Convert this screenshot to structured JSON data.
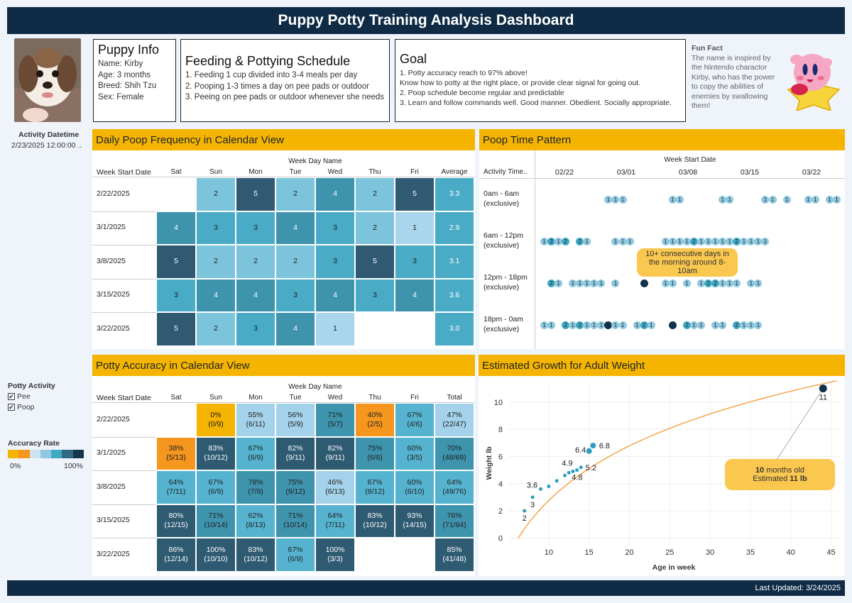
{
  "header": {
    "title": "Puppy Potty Training Analysis Dashboard"
  },
  "footer": {
    "last_updated": "Last Updated: 3/24/2025"
  },
  "puppy_info": {
    "title": "Puppy Info",
    "lines": [
      "Name: Kirby",
      "Age: 3 months",
      "Breed: Shih Tzu",
      "Sex: Female"
    ]
  },
  "schedule": {
    "title": "Feeding & Pottying Schedule",
    "lines": [
      "1. Feeding 1 cup divided into 3-4 meals per day",
      "2. Pooping 1-3 times a day on pee pads or outdoor",
      "3. Peeing on pee pads or outdoor whenever she needs"
    ]
  },
  "goal": {
    "title": "Goal",
    "lines": [
      "1. Potty accuracy reach to 97% above!",
      "Know how to potty at the right place, or provide clear signal for going out.",
      "2. Poop schedule become regular and predictable",
      "3. Learn and follow commands well. Good manner. Obedient. Socially appropriate."
    ]
  },
  "fun_fact": {
    "title": "Fun Fact",
    "text": "The name is inspired by the Nintendo charactor Kirby, who has the power to copy the abilities of enemies by swallowing them!"
  },
  "filters": {
    "activity_datetime_label": "Activity Datetime",
    "activity_datetime_value": "2/23/2025 12:00:00 ..",
    "potty_activity_label": "Potty Activity",
    "potty_options": [
      "Pee",
      "Poop"
    ],
    "accuracy_rate_label": "Accuracy Rate",
    "accuracy_min": "0%",
    "accuracy_max": "100%",
    "accuracy_colors": [
      "#f5b400",
      "#f5961f",
      "#cde3f0",
      "#8fc9e0",
      "#3fa9c4",
      "#2e6a86",
      "#15354d"
    ]
  },
  "poop_calendar": {
    "title": "Daily Poop Frequency in Calendar View",
    "group_header": "Week Day Name",
    "row_header": "Week Start Date",
    "columns": [
      "Sat",
      "Sun",
      "Mon",
      "Tue",
      "Wed",
      "Thu",
      "Fri",
      "Average"
    ],
    "rows": [
      {
        "week": "2/22/2025",
        "cells": [
          "",
          "2",
          "5",
          "2",
          "4",
          "2",
          "5",
          "3.3"
        ]
      },
      {
        "week": "3/1/2025",
        "cells": [
          "4",
          "3",
          "3",
          "4",
          "3",
          "2",
          "1",
          "2.9"
        ]
      },
      {
        "week": "3/8/2025",
        "cells": [
          "5",
          "2",
          "2",
          "2",
          "3",
          "5",
          "3",
          "3.1"
        ]
      },
      {
        "week": "3/15/2025",
        "cells": [
          "3",
          "4",
          "4",
          "3",
          "4",
          "3",
          "4",
          "3.6"
        ]
      },
      {
        "week": "3/22/2025",
        "cells": [
          "5",
          "2",
          "3",
          "4",
          "1",
          "",
          "",
          "3.0"
        ]
      }
    ]
  },
  "poop_time": {
    "title": "Poop Time Pattern",
    "x_header": "Week Start Date",
    "row_header": "Activity Time..",
    "x_ticks": [
      "02/22",
      "03/01",
      "03/08",
      "03/15",
      "03/22"
    ],
    "rows": [
      {
        "label1": "0am - 6am",
        "label2": "(exclusive)",
        "values": [
          0,
          0,
          0,
          0,
          0,
          0,
          0,
          0,
          0,
          1,
          1,
          1,
          0,
          0,
          0,
          0,
          0,
          0,
          1,
          1,
          0,
          0,
          0,
          0,
          0,
          1,
          1,
          0,
          0,
          0,
          0,
          1,
          1,
          0,
          1,
          0,
          0,
          1,
          1,
          0,
          1,
          1
        ]
      },
      {
        "label1": "6am - 12pm",
        "label2": "(exclusive)",
        "values": [
          1,
          2,
          1,
          2,
          0,
          2,
          1,
          0,
          0,
          0,
          1,
          1,
          1,
          0,
          0,
          0,
          0,
          1,
          1,
          1,
          1,
          2,
          1,
          1,
          1,
          1,
          1,
          2,
          1,
          1,
          1,
          1,
          0,
          0,
          0,
          0,
          0,
          0,
          0,
          0,
          0,
          0
        ]
      },
      {
        "label1": "12pm - 18pm",
        "label2": "(exclusive)",
        "values": [
          0,
          2,
          1,
          0,
          1,
          1,
          1,
          1,
          1,
          0,
          1,
          0,
          0,
          0,
          3,
          0,
          0,
          1,
          1,
          0,
          1,
          0,
          1,
          2,
          2,
          1,
          1,
          1,
          0,
          1,
          1,
          0,
          0,
          0,
          0,
          0,
          0,
          0,
          0,
          0,
          0,
          0
        ]
      },
      {
        "label1": "18pm - 0am",
        "label2": "(exclusive)",
        "values": [
          1,
          1,
          0,
          2,
          1,
          2,
          1,
          1,
          1,
          3,
          1,
          1,
          0,
          1,
          2,
          1,
          0,
          0,
          3,
          0,
          2,
          1,
          1,
          0,
          1,
          1,
          0,
          2,
          1,
          1,
          1,
          0,
          0,
          0,
          0,
          0,
          0,
          0,
          0,
          0,
          0,
          0
        ]
      }
    ],
    "callout": "10+ consecutive days in the morning around 8-10am"
  },
  "accuracy_calendar": {
    "title": "Potty Accuracy in Calendar View",
    "group_header": "Week Day Name",
    "row_header": "Week Start Date",
    "columns": [
      "Sat",
      "Sun",
      "Mon",
      "Tue",
      "Wed",
      "Thu",
      "Fri",
      "Total"
    ],
    "rows": [
      {
        "week": "2/22/2025",
        "cells": [
          null,
          [
            "0%",
            "(0/9)"
          ],
          [
            "55%",
            "(6/11)"
          ],
          [
            "56%",
            "(5/9)"
          ],
          [
            "71%",
            "(5/7)"
          ],
          [
            "40%",
            "(2/5)"
          ],
          [
            "67%",
            "(4/6)"
          ],
          [
            "47%",
            "(22/47)"
          ]
        ]
      },
      {
        "week": "3/1/2025",
        "cells": [
          [
            "38%",
            "(5/13)"
          ],
          [
            "83%",
            "(10/12)"
          ],
          [
            "67%",
            "(6/9)"
          ],
          [
            "82%",
            "(9/11)"
          ],
          [
            "82%",
            "(9/11)"
          ],
          [
            "75%",
            "(6/8)"
          ],
          [
            "60%",
            "(3/5)"
          ],
          [
            "70%",
            "(48/69)"
          ]
        ]
      },
      {
        "week": "3/8/2025",
        "cells": [
          [
            "64%",
            "(7/11)"
          ],
          [
            "67%",
            "(6/9)"
          ],
          [
            "78%",
            "(7/9)"
          ],
          [
            "75%",
            "(9/12)"
          ],
          [
            "46%",
            "(6/13)"
          ],
          [
            "67%",
            "(8/12)"
          ],
          [
            "60%",
            "(6/10)"
          ],
          [
            "64%",
            "(49/76)"
          ]
        ]
      },
      {
        "week": "3/15/2025",
        "cells": [
          [
            "80%",
            "(12/15)"
          ],
          [
            "71%",
            "(10/14)"
          ],
          [
            "62%",
            "(8/13)"
          ],
          [
            "71%",
            "(10/14)"
          ],
          [
            "64%",
            "(7/11)"
          ],
          [
            "83%",
            "(10/12)"
          ],
          [
            "93%",
            "(14/15)"
          ],
          [
            "76%",
            "(71/94)"
          ]
        ]
      },
      {
        "week": "3/22/2025",
        "cells": [
          [
            "86%",
            "(12/14)"
          ],
          [
            "100%",
            "(10/10)"
          ],
          [
            "83%",
            "(10/12)"
          ],
          [
            "67%",
            "(6/9)"
          ],
          [
            "100%",
            "(3/3)"
          ],
          null,
          null,
          [
            "85%",
            "(41/48)"
          ]
        ]
      }
    ]
  },
  "chart_data": {
    "type": "scatter",
    "title": "Estimated Growth for Adult Weight",
    "xlabel": "Age in week",
    "ylabel": "Weight lb",
    "xlim": [
      5,
      46
    ],
    "ylim": [
      -0.5,
      11.5
    ],
    "x_ticks": [
      10,
      15,
      20,
      25,
      30,
      35,
      40,
      45
    ],
    "y_ticks": [
      0,
      2,
      4,
      6,
      8,
      10
    ],
    "grid": true,
    "series": [
      {
        "x": [
          7,
          8,
          9,
          10,
          11,
          12,
          12.5,
          13,
          13.5,
          14,
          15,
          15.5,
          44
        ],
        "y": [
          2,
          3,
          3.6,
          3.8,
          4.2,
          4.6,
          4.8,
          4.9,
          5.0,
          5.2,
          6.4,
          6.8,
          11
        ]
      }
    ],
    "data_labels": [
      {
        "x": 7,
        "y": 2,
        "text": "2"
      },
      {
        "x": 8,
        "y": 3,
        "text": "3"
      },
      {
        "x": 9,
        "y": 3.6,
        "text": "3.6"
      },
      {
        "x": 13,
        "y": 4.9,
        "text": "4.9"
      },
      {
        "x": 13,
        "y": 4.8,
        "text": "4.8"
      },
      {
        "x": 14,
        "y": 5.2,
        "text": "5.2"
      },
      {
        "x": 15,
        "y": 6.4,
        "text": "6.4"
      },
      {
        "x": 15.5,
        "y": 6.8,
        "text": "6.8"
      },
      {
        "x": 44,
        "y": 11,
        "text": "11"
      }
    ],
    "callout_line1_num": "10",
    "callout_line1_text": " months old",
    "callout_line2_text": "Estimated ",
    "callout_line2_num": "11 lb",
    "curve_color": "#f5a54a",
    "point_color": "#2b9fbf",
    "highlight_color": "#12314b"
  }
}
